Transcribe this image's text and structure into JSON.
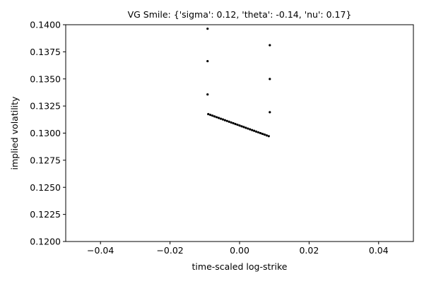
{
  "colors": {
    "marker": "#000000",
    "axes": "#000000",
    "background": "#ffffff"
  },
  "chart_data": {
    "type": "scatter",
    "title": "VG Smile: {'sigma': 0.12, 'theta': -0.14, 'nu': 0.17}",
    "xlabel": "time-scaled log-strike",
    "ylabel": "implied volatility",
    "xlim": [
      -0.05,
      0.05
    ],
    "ylim": [
      0.12,
      0.14
    ],
    "xticks": [
      -0.04,
      -0.02,
      0.0,
      0.02,
      0.04
    ],
    "xtick_labels": [
      "−0.04",
      "−0.02",
      "0.00",
      "0.02",
      "0.04"
    ],
    "yticks": [
      0.12,
      0.1225,
      0.125,
      0.1275,
      0.13,
      0.1325,
      0.135,
      0.1375,
      0.14
    ],
    "ytick_labels": [
      "0.1200",
      "0.1225",
      "0.1250",
      "0.1275",
      "0.1300",
      "0.1325",
      "0.1350",
      "0.1375",
      "0.1400"
    ],
    "grid": false,
    "legend": "none",
    "series": [
      {
        "x": [
          -0.0092,
          -0.0092,
          -0.0092,
          0.0087,
          0.0087,
          0.0087,
          -0.009,
          -0.0084,
          -0.0078,
          -0.0072,
          -0.0066,
          -0.006,
          -0.0054,
          -0.0048,
          -0.0042,
          -0.0036,
          -0.003,
          -0.0024,
          -0.0018,
          -0.0012,
          -0.0006,
          0.0,
          0.0006,
          0.0012,
          0.0018,
          0.0024,
          0.003,
          0.0036,
          0.0042,
          0.0048,
          0.0054,
          0.006,
          0.0066,
          0.0072,
          0.0078,
          0.0084
        ],
        "y": [
          0.13963,
          0.13664,
          0.13357,
          0.13811,
          0.13499,
          0.13193,
          0.13175,
          0.13168,
          0.13161,
          0.13154,
          0.13147,
          0.1314,
          0.13133,
          0.13126,
          0.13119,
          0.13112,
          0.13105,
          0.13098,
          0.13091,
          0.13084,
          0.13077,
          0.1307,
          0.13063,
          0.13056,
          0.13049,
          0.13042,
          0.13035,
          0.13028,
          0.13021,
          0.13014,
          0.13007,
          0.13,
          0.12993,
          0.12986,
          0.12979,
          0.12972
        ]
      }
    ]
  }
}
